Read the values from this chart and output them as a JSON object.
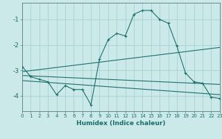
{
  "xlabel": "Humidex (Indice chaleur)",
  "bg_color": "#cce9e9",
  "grid_color": "#aad4d4",
  "line_color": "#1a6b6b",
  "x_values": [
    0,
    1,
    2,
    3,
    4,
    5,
    6,
    7,
    8,
    9,
    10,
    11,
    12,
    13,
    14,
    15,
    16,
    17,
    18,
    19,
    20,
    21,
    22,
    23
  ],
  "series1": [
    -2.85,
    -3.25,
    -3.35,
    -3.45,
    -3.95,
    -3.6,
    -3.75,
    -3.75,
    -4.35,
    -2.55,
    -1.8,
    -1.55,
    -1.65,
    -0.8,
    -0.65,
    -0.65,
    -1.0,
    -1.15,
    -2.05,
    -3.1,
    -3.45,
    -3.5,
    -4.05,
    -4.1
  ],
  "series2_x": [
    0,
    23
  ],
  "series2_y": [
    -3.05,
    -2.1
  ],
  "series3_x": [
    0,
    23
  ],
  "series3_y": [
    -3.2,
    -3.55
  ],
  "series4_x": [
    0,
    23
  ],
  "series4_y": [
    -3.4,
    -3.95
  ],
  "ylim": [
    -4.6,
    -0.35
  ],
  "xlim": [
    0,
    23
  ]
}
